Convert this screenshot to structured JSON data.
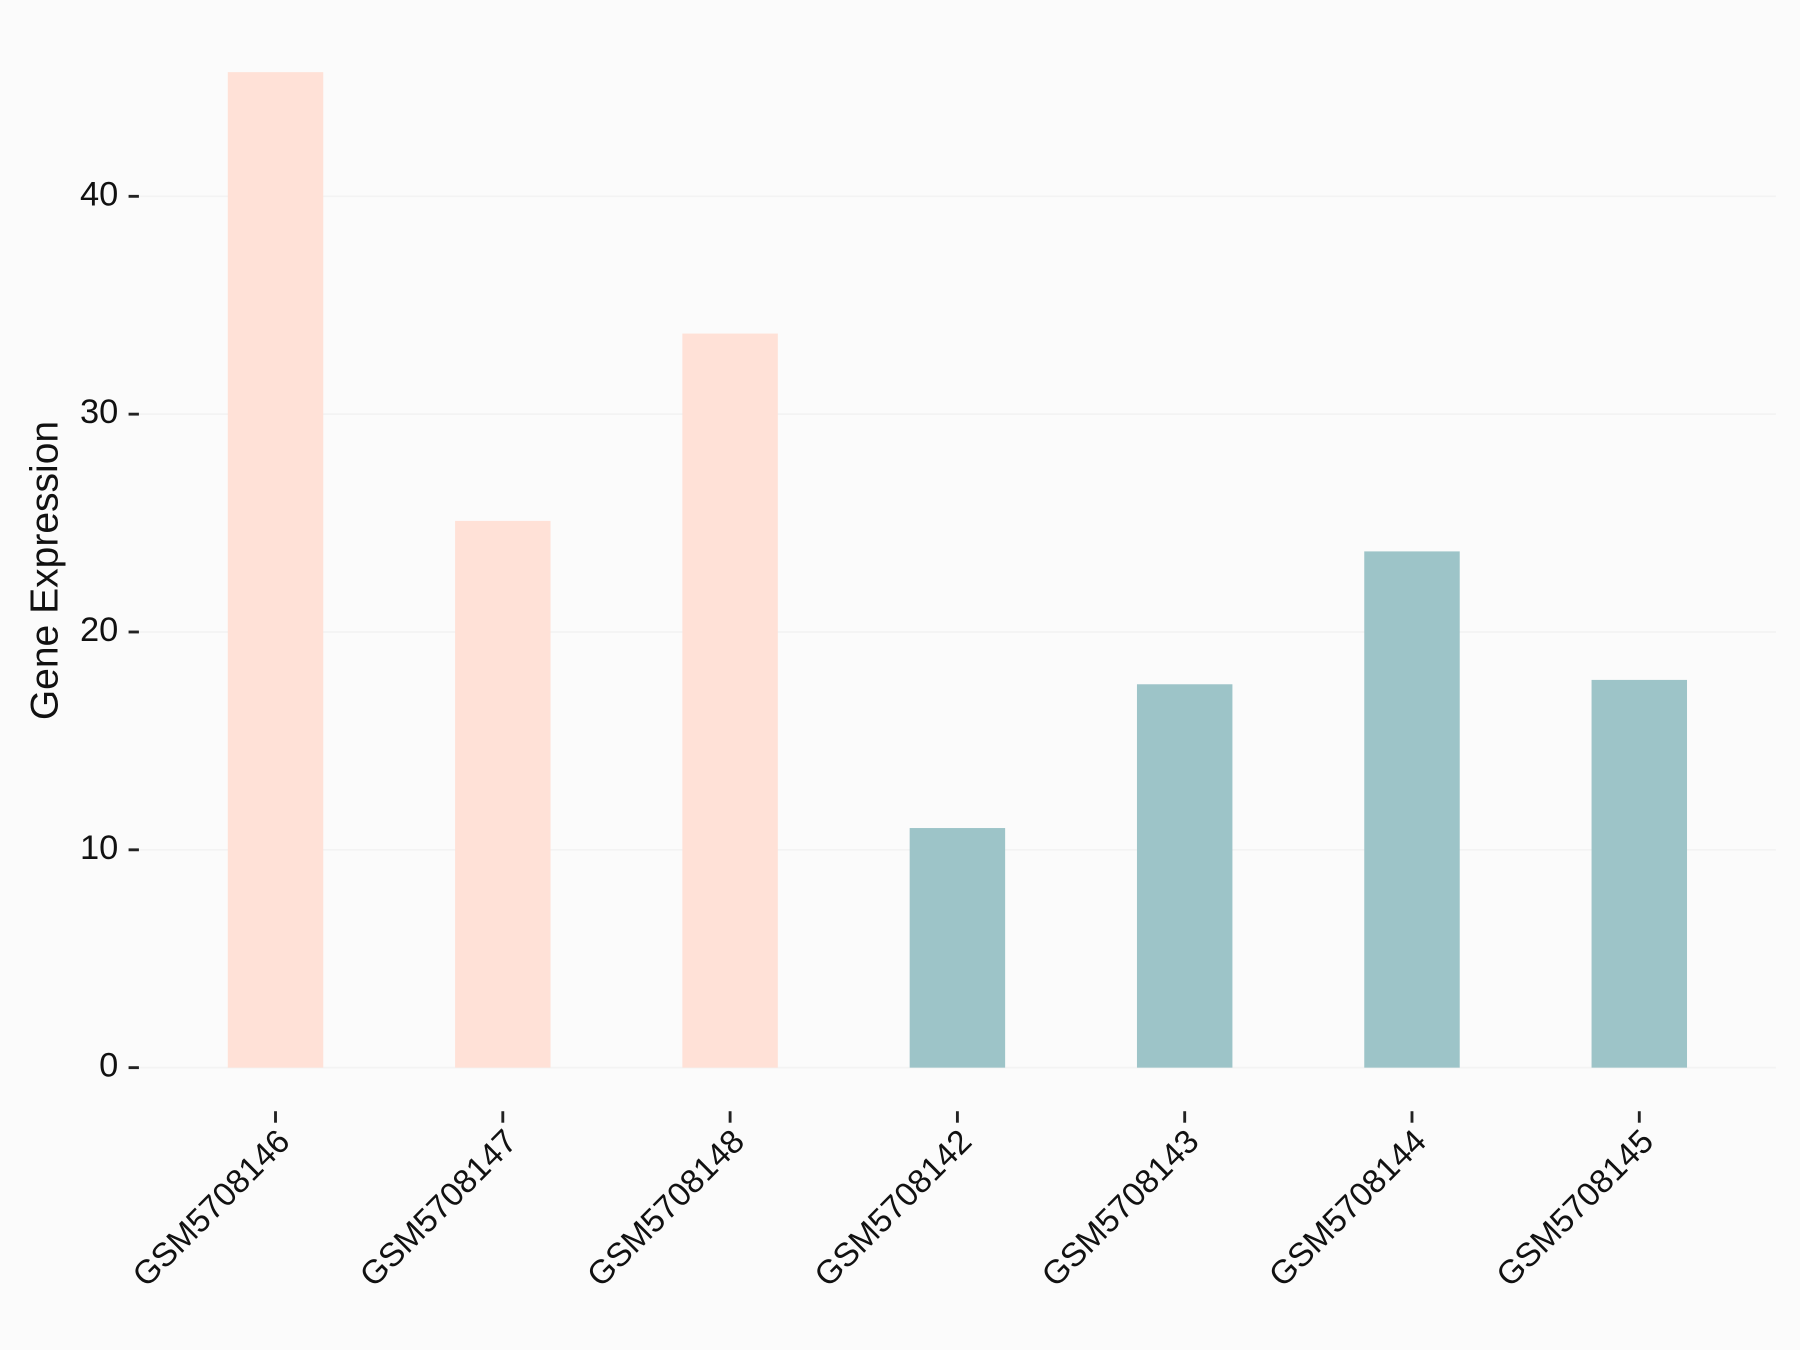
{
  "chart_data": {
    "type": "bar",
    "y_label": "Gene Expression",
    "categories": [
      "GSM5708146",
      "GSM5708147",
      "GSM5708148",
      "GSM5708142",
      "GSM5708143",
      "GSM5708144",
      "GSM5708145"
    ],
    "values": [
      45.7,
      25.1,
      33.7,
      11.0,
      17.6,
      23.7,
      17.8
    ],
    "colors": [
      "#ffe1d7",
      "#ffe1d7",
      "#ffe1d7",
      "#9dc4c8",
      "#9dc4c8",
      "#9dc4c8",
      "#9dc4c8"
    ],
    "ylim": [
      -2.285,
      47.985
    ],
    "yticks": [
      0,
      10,
      20,
      30,
      40
    ],
    "grid": true
  }
}
